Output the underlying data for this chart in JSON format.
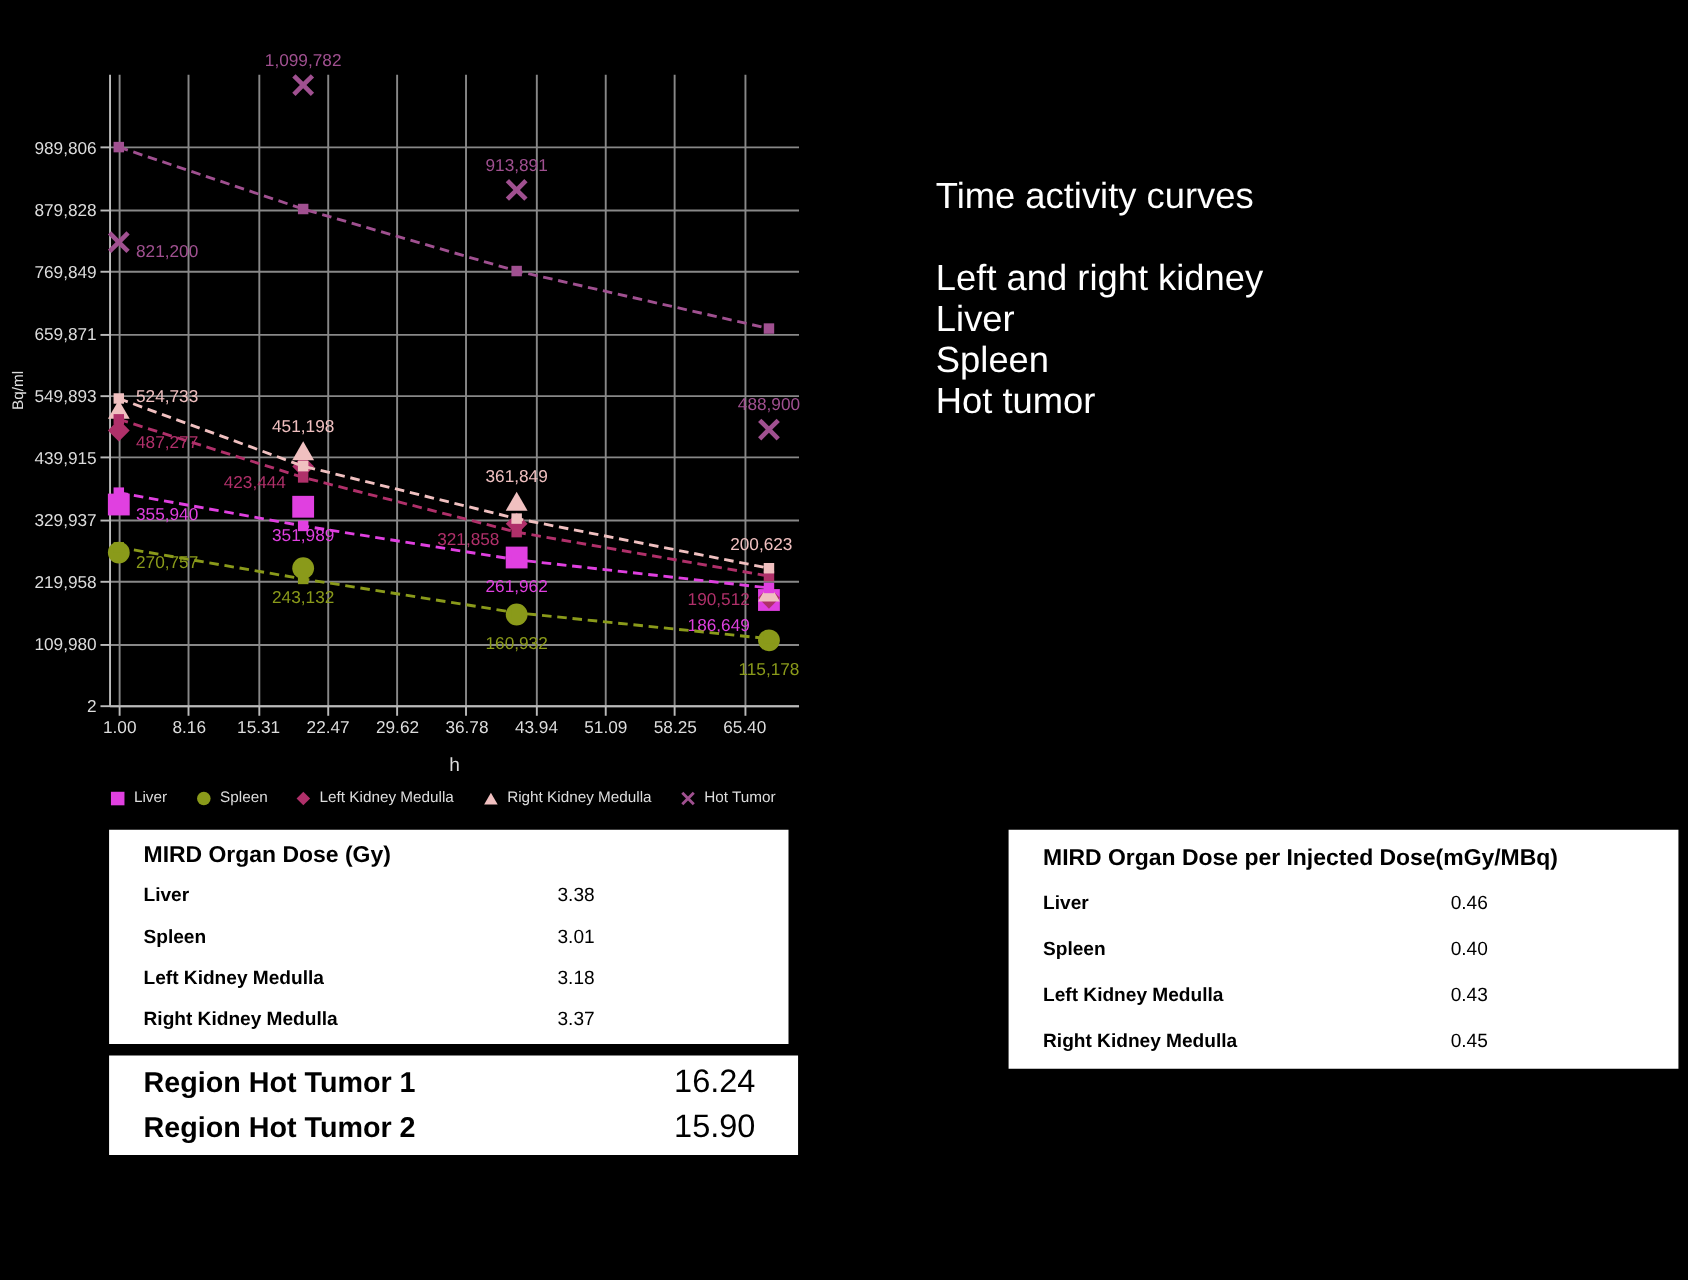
{
  "chart_data": [
    {
      "type": "scatter",
      "xlabel": "h",
      "ylabel": "Bq/ml",
      "x": [
        1,
        20,
        42,
        68
      ],
      "xlim": [
        0,
        71
      ],
      "ylim": [
        2,
        1120000
      ],
      "xticks": [
        {
          "value": 1,
          "label": "1.00"
        },
        8.16,
        15.31,
        22.47,
        29.62,
        36.78,
        43.94,
        51.09,
        58.25,
        {
          "value": 65.4,
          "label": "65.40"
        }
      ],
      "yticks": [
        2,
        {
          "value": 109980,
          "label": "109,980"
        },
        {
          "value": 219958,
          "label": "219,958"
        },
        {
          "value": 329937,
          "label": "329,937"
        },
        {
          "value": 439915,
          "label": "439,915"
        },
        {
          "value": 549893,
          "label": "549,893"
        },
        {
          "value": 659871,
          "label": "659,871"
        },
        {
          "value": 769849,
          "label": "769,849"
        },
        {
          "value": 879828,
          "label": "879,828"
        },
        {
          "value": 989806,
          "label": "989,806"
        }
      ],
      "grid": true,
      "legend": "bottom",
      "series": [
        {
          "name": "Liver",
          "color": "#e040e0",
          "marker": "square",
          "values": [
            355940,
            351989,
            261962,
            186649
          ],
          "value_labels": [
            "355,940",
            "351,989",
            "261,962",
            "186,649"
          ]
        },
        {
          "name": "Spleen",
          "color": "#8a9a1a",
          "marker": "circle",
          "values": [
            270757,
            243132,
            160932,
            115178
          ],
          "value_labels": [
            "270,757",
            "243,132",
            "160,932",
            "115,178"
          ]
        },
        {
          "name": "Left Kidney Medulla",
          "color": "#b0306a",
          "marker": "diamond",
          "values": [
            487277,
            423444,
            321858,
            190512
          ],
          "value_labels": [
            "487,277",
            "423,444",
            "321,858",
            "190,512"
          ]
        },
        {
          "name": "Right Kidney Medulla",
          "color": "#f0c0c0",
          "marker": "triangle",
          "values": [
            524733,
            451198,
            361849,
            200623
          ],
          "value_labels": [
            "524,733",
            "451,198",
            "361,849",
            "200,623"
          ]
        },
        {
          "name": "Hot Tumor",
          "color": "#a05090",
          "marker": "cross",
          "values": [
            821200,
            1099782,
            913891,
            488900
          ],
          "value_labels": [
            "821,200",
            "1,099,782",
            "913,891",
            "488,900"
          ]
        },
        {
          "type": "line",
          "line_style": "dashed",
          "marker": "square",
          "color": "#e040e0",
          "values": [
            377000,
            318000,
            258000,
            208000
          ]
        },
        {
          "type": "line",
          "line_style": "dashed",
          "marker": "square",
          "color": "#8a9a1a",
          "values": [
            280000,
            224000,
            164000,
            118000
          ]
        },
        {
          "type": "line",
          "line_style": "dashed",
          "marker": "square",
          "color": "#b0306a",
          "values": [
            507000,
            404000,
            307000,
            229000
          ]
        },
        {
          "type": "line",
          "line_style": "dashed",
          "marker": "square",
          "color": "#f0c0c0",
          "values": [
            544000,
            424000,
            331000,
            243000
          ]
        },
        {
          "type": "line",
          "line_style": "dashed",
          "marker": "square",
          "color": "#a05090",
          "values": [
            989806,
            880000,
            770000,
            668000
          ]
        }
      ]
    },
    {
      "type": "other",
      "title": "Time activity curves",
      "annotations": [
        "Left and right kidney",
        "Liver",
        "Spleen",
        "Hot tumor"
      ]
    },
    {
      "type": "other",
      "title": "MIRD Organ Dose (Gy)",
      "categories": [
        "Liver",
        "Spleen",
        "Left Kidney Medulla",
        "Right Kidney Medulla"
      ],
      "value_labels": [
        "3.38",
        "3.01",
        "3.18",
        "3.37"
      ]
    },
    {
      "type": "other",
      "categories": [
        "Region Hot Tumor 1",
        "Region Hot Tumor 2"
      ],
      "value_labels": [
        "16.24",
        "15.90"
      ]
    },
    {
      "type": "other",
      "title": "MIRD Organ Dose per Injected Dose(mGy/MBq)",
      "categories": [
        "Liver",
        "Spleen",
        "Left Kidney Medulla",
        "Right Kidney Medulla"
      ],
      "value_labels": [
        "0.46",
        "0.40",
        "0.43",
        "0.45"
      ]
    }
  ]
}
